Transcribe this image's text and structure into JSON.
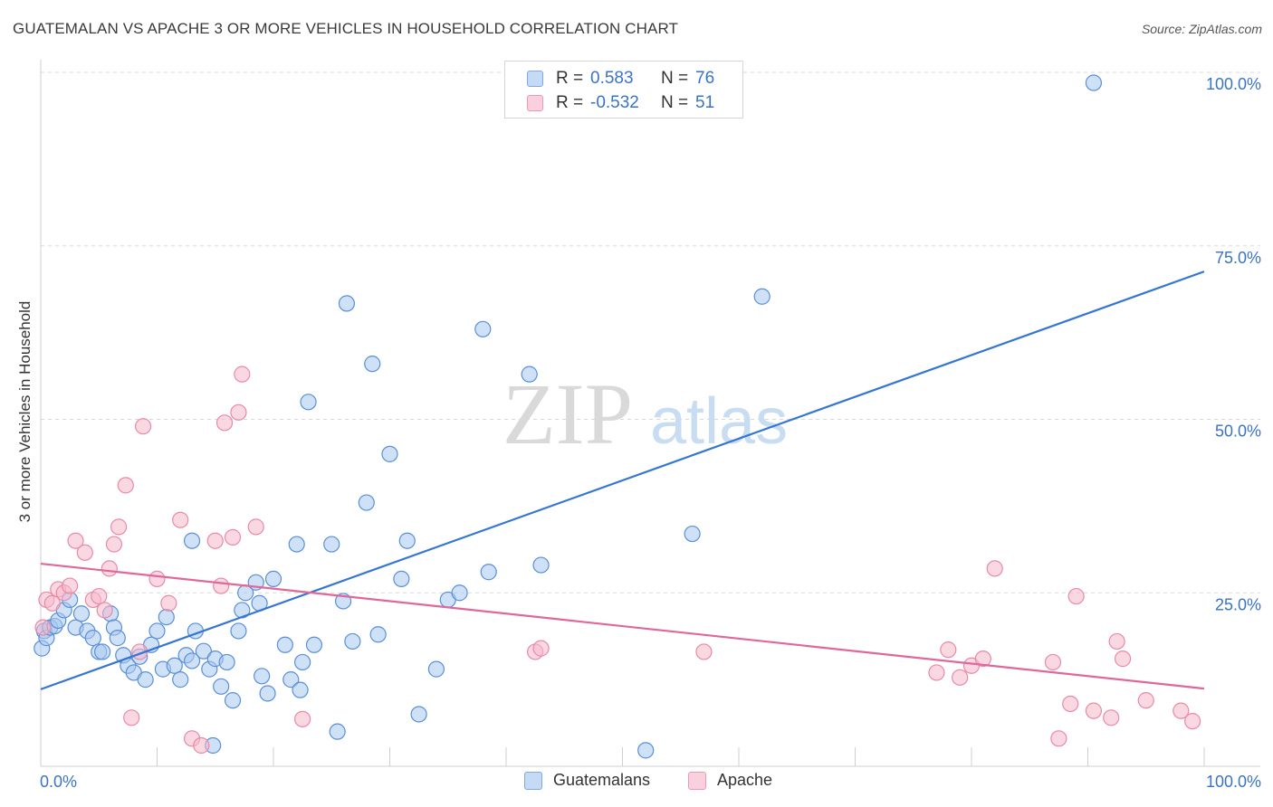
{
  "title": "GUATEMALAN VS APACHE 3 OR MORE VEHICLES IN HOUSEHOLD CORRELATION CHART",
  "source": "Source: ZipAtlas.com",
  "watermark": {
    "zip": "ZIP",
    "atlas": "atlas"
  },
  "legend": {
    "rows": [
      {
        "r_label": "R =",
        "r_value": "0.583",
        "n_label": "N =",
        "n_value": "76",
        "color": "#a8c8f0"
      },
      {
        "r_label": "R =",
        "r_value": "-0.532",
        "n_label": "N =",
        "n_value": "51",
        "color": "#f5b8cb"
      }
    ]
  },
  "bottom_legend": {
    "series1": "Guatemalans",
    "series2": "Apache"
  },
  "colors": {
    "blue_fill": "#a8c8f0",
    "blue_stroke": "#5b8fd6",
    "blue_line": "#3575d3",
    "pink_fill": "#f5b8cb",
    "pink_stroke": "#e88aa8",
    "pink_line": "#e0679a",
    "axis_label": "#3b73c4",
    "grid": "#d8d8d8"
  },
  "chart_data": {
    "type": "scatter",
    "title": "GUATEMALAN VS APACHE 3 OR MORE VEHICLES IN HOUSEHOLD CORRELATION CHART",
    "xlabel": "",
    "ylabel": "3 or more Vehicles in Household",
    "xlim": [
      0,
      100
    ],
    "ylim": [
      0,
      100
    ],
    "x_tick_labels": [
      {
        "value": 0,
        "label": "0.0%"
      },
      {
        "value": 100,
        "label": "100.0%"
      }
    ],
    "y_tick_labels": [
      {
        "value": 25,
        "label": "25.0%"
      },
      {
        "value": 50,
        "label": "50.0%"
      },
      {
        "value": 75,
        "label": "75.0%"
      },
      {
        "value": 100,
        "label": "100.0%"
      }
    ],
    "series": [
      {
        "name": "Guatemalans",
        "r": 0.583,
        "n": 76,
        "trend": {
          "x": [
            0,
            100
          ],
          "y": [
            11.1,
            71.3
          ]
        },
        "points": [
          [
            0.1,
            17.0
          ],
          [
            0.3,
            19.5
          ],
          [
            0.5,
            18.5
          ],
          [
            0.8,
            20.0
          ],
          [
            1.2,
            20.2
          ],
          [
            1.5,
            21.0
          ],
          [
            2.0,
            22.5
          ],
          [
            2.5,
            24.0
          ],
          [
            3.0,
            20.0
          ],
          [
            3.5,
            22.0
          ],
          [
            4.0,
            19.5
          ],
          [
            4.5,
            18.5
          ],
          [
            5.0,
            16.5
          ],
          [
            5.3,
            16.5
          ],
          [
            6.0,
            22.0
          ],
          [
            6.3,
            20.0
          ],
          [
            6.6,
            18.5
          ],
          [
            7.1,
            16.0
          ],
          [
            7.5,
            14.5
          ],
          [
            8.0,
            13.5
          ],
          [
            8.5,
            15.8
          ],
          [
            9.0,
            12.5
          ],
          [
            9.5,
            17.5
          ],
          [
            10.0,
            19.5
          ],
          [
            10.5,
            14.0
          ],
          [
            10.8,
            21.5
          ],
          [
            11.5,
            14.5
          ],
          [
            12.0,
            12.5
          ],
          [
            12.5,
            16.0
          ],
          [
            13.0,
            15.2
          ],
          [
            13.0,
            32.5
          ],
          [
            13.3,
            19.5
          ],
          [
            14.0,
            16.6
          ],
          [
            14.5,
            14.0
          ],
          [
            14.8,
            3.0
          ],
          [
            15.0,
            15.5
          ],
          [
            15.5,
            11.5
          ],
          [
            16.0,
            15.0
          ],
          [
            16.5,
            9.5
          ],
          [
            17.0,
            19.5
          ],
          [
            17.3,
            22.5
          ],
          [
            17.6,
            25.0
          ],
          [
            18.5,
            26.5
          ],
          [
            18.8,
            23.5
          ],
          [
            19.0,
            13.0
          ],
          [
            19.5,
            10.5
          ],
          [
            20.0,
            27.0
          ],
          [
            21.0,
            17.5
          ],
          [
            21.5,
            12.5
          ],
          [
            22.0,
            32.0
          ],
          [
            22.3,
            11.0
          ],
          [
            22.5,
            15.0
          ],
          [
            23.0,
            52.5
          ],
          [
            23.5,
            17.5
          ],
          [
            25.0,
            32.0
          ],
          [
            25.5,
            5.0
          ],
          [
            26.0,
            23.8
          ],
          [
            26.3,
            66.7
          ],
          [
            26.8,
            18.0
          ],
          [
            28.0,
            38.0
          ],
          [
            28.5,
            58.0
          ],
          [
            29.0,
            19.0
          ],
          [
            30.0,
            45.0
          ],
          [
            31.0,
            27.0
          ],
          [
            31.5,
            32.5
          ],
          [
            32.5,
            7.5
          ],
          [
            34.0,
            14.0
          ],
          [
            35.0,
            24.0
          ],
          [
            36.0,
            25.0
          ],
          [
            38.0,
            63.0
          ],
          [
            38.5,
            28.0
          ],
          [
            42.0,
            56.5
          ],
          [
            43.0,
            29.0
          ],
          [
            52.0,
            2.3
          ],
          [
            56.0,
            33.5
          ],
          [
            62.0,
            67.7
          ],
          [
            90.5,
            98.5
          ]
        ]
      },
      {
        "name": "Apache",
        "r": -0.532,
        "n": 51,
        "trend": {
          "x": [
            0,
            100
          ],
          "y": [
            29.2,
            11.2
          ]
        },
        "points": [
          [
            0.2,
            20.0
          ],
          [
            0.5,
            24.0
          ],
          [
            1.0,
            23.5
          ],
          [
            1.5,
            25.5
          ],
          [
            2.0,
            25.0
          ],
          [
            2.5,
            26.0
          ],
          [
            3.0,
            32.5
          ],
          [
            3.8,
            30.8
          ],
          [
            4.5,
            24.0
          ],
          [
            5.0,
            24.5
          ],
          [
            5.5,
            22.5
          ],
          [
            5.9,
            28.5
          ],
          [
            6.3,
            32.0
          ],
          [
            6.7,
            34.5
          ],
          [
            7.3,
            40.5
          ],
          [
            7.8,
            7.0
          ],
          [
            8.5,
            16.5
          ],
          [
            8.8,
            49.0
          ],
          [
            10.0,
            27.0
          ],
          [
            11.0,
            23.5
          ],
          [
            12.0,
            35.5
          ],
          [
            13.0,
            4.0
          ],
          [
            13.8,
            3.0
          ],
          [
            15.0,
            32.5
          ],
          [
            15.5,
            26.0
          ],
          [
            15.8,
            49.5
          ],
          [
            16.5,
            33.0
          ],
          [
            17.0,
            51.0
          ],
          [
            17.3,
            56.5
          ],
          [
            18.5,
            34.5
          ],
          [
            22.5,
            6.8
          ],
          [
            42.5,
            16.5
          ],
          [
            43.0,
            17.0
          ],
          [
            57.0,
            16.5
          ],
          [
            77.0,
            13.5
          ],
          [
            78.0,
            16.8
          ],
          [
            79.0,
            12.8
          ],
          [
            80.0,
            14.5
          ],
          [
            81.0,
            15.5
          ],
          [
            82.0,
            28.5
          ],
          [
            87.0,
            15.0
          ],
          [
            87.5,
            4.0
          ],
          [
            88.5,
            9.0
          ],
          [
            89.0,
            24.5
          ],
          [
            90.5,
            8.0
          ],
          [
            92.0,
            7.0
          ],
          [
            92.5,
            18.0
          ],
          [
            93.0,
            15.5
          ],
          [
            95.0,
            9.5
          ],
          [
            98.0,
            8.0
          ],
          [
            99.0,
            6.5
          ]
        ]
      }
    ]
  }
}
